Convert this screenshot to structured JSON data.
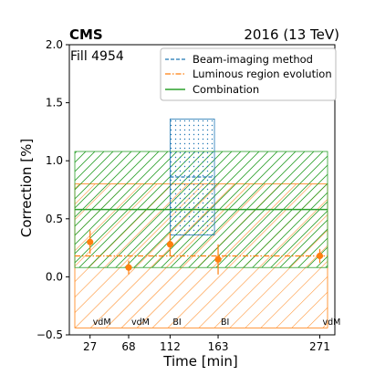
{
  "chart_data": {
    "type": "scatter",
    "header_left": "CMS",
    "header_right": "2016 (13 TeV)",
    "fill_label": "Fill 4954",
    "xlabel": "Time [min]",
    "ylabel": "Correction [%]",
    "xlim": [
      5,
      287
    ],
    "ylim": [
      -0.5,
      2.0
    ],
    "x_ticks": [
      27,
      68,
      112,
      163,
      271
    ],
    "y_ticks": [
      -0.5,
      0.0,
      0.5,
      1.0,
      1.5,
      2.0
    ],
    "y_tick_labels": [
      "−0.5",
      "0.0",
      "0.5",
      "1.0",
      "1.5",
      "2.0"
    ],
    "legend_placement": "top-right",
    "series": [
      {
        "name": "Luminous region evolution",
        "color": "#ff7f0e",
        "band": {
          "center": 0.18,
          "low": -0.44,
          "high": 0.8
        },
        "points": [
          {
            "x": 27,
            "y": 0.3,
            "yerr": 0.1,
            "label": "vdM"
          },
          {
            "x": 68,
            "y": 0.08,
            "yerr": 0.06,
            "label": "vdM"
          },
          {
            "x": 112,
            "y": 0.28,
            "yerr": 0.1,
            "label": "BI"
          },
          {
            "x": 163,
            "y": 0.15,
            "yerr": 0.13,
            "label": "BI"
          },
          {
            "x": 271,
            "y": 0.18,
            "yerr": 0.06,
            "label": "vdM"
          }
        ]
      },
      {
        "name": "Beam-imaging method",
        "color": "#1f77b4",
        "band": {
          "center": 0.86,
          "low": 0.36,
          "high": 1.36,
          "x_start": 112,
          "x_end": 163
        }
      },
      {
        "name": "Combination",
        "color": "#2ca02c",
        "band": {
          "center": 0.58,
          "low": 0.08,
          "high": 1.08
        }
      }
    ]
  }
}
